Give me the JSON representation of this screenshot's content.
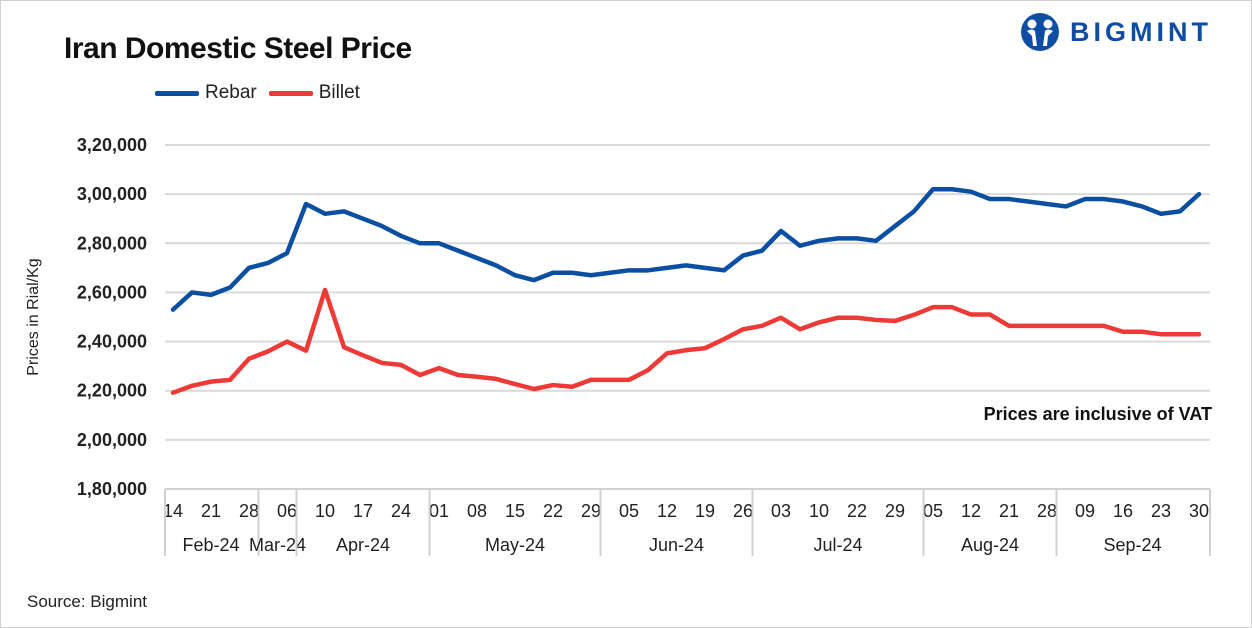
{
  "title": "Iran Domestic Steel Price",
  "source": "Source: Bigmint",
  "logo_text": "BIGMINT",
  "brand_color": "#0e4da4",
  "chart_data": {
    "type": "line",
    "title": "Iran Domestic Steel Price",
    "ylabel": "Prices in Rial/Kg",
    "ylim": [
      180000,
      320000
    ],
    "yticks": [
      180000,
      200000,
      220000,
      240000,
      260000,
      280000,
      300000,
      320000
    ],
    "ytick_labels": [
      "1,80,000",
      "2,00,000",
      "2,20,000",
      "2,40,000",
      "2,60,000",
      "2,80,000",
      "3,00,000",
      "3,20,000"
    ],
    "grid": true,
    "legend": "top-left",
    "annotation": "Prices are inclusive of VAT",
    "x_labels": [
      "14",
      "",
      "21",
      "",
      "28",
      "",
      "06",
      "",
      "10",
      "",
      "17",
      "",
      "24",
      "",
      "01",
      "",
      "08",
      "",
      "15",
      "",
      "22",
      "",
      "29",
      "",
      "05",
      "",
      "12",
      "",
      "19",
      "",
      "26",
      "",
      "03",
      "",
      "10",
      "",
      "22",
      "",
      "29",
      "",
      "05",
      "",
      "12",
      "",
      "21",
      "",
      "28",
      "",
      "09",
      "",
      "16",
      "",
      "23",
      "",
      "30"
    ],
    "month_groups": [
      {
        "label": "Feb-24",
        "count": 5
      },
      {
        "label": "Mar-24",
        "count": 2
      },
      {
        "label": "Apr-24",
        "count": 7
      },
      {
        "label": "May-24",
        "count": 9
      },
      {
        "label": "Jun-24",
        "count": 8
      },
      {
        "label": "Jul-24",
        "count": 9
      },
      {
        "label": "Aug-24",
        "count": 7
      },
      {
        "label": "Sep-24",
        "count": 8
      }
    ],
    "series": [
      {
        "name": "Rebar",
        "color": "#0b4fa3",
        "values": [
          253000,
          260000,
          259000,
          262000,
          270000,
          272000,
          276000,
          296000,
          292000,
          293000,
          290000,
          287000,
          283000,
          280000,
          280000,
          277000,
          274000,
          271000,
          267000,
          265000,
          268000,
          268000,
          267000,
          268000,
          269000,
          269000,
          270000,
          271000,
          270000,
          269000,
          275000,
          277000,
          285000,
          279000,
          281000,
          282000,
          282000,
          281000,
          287000,
          293000,
          302000,
          302000,
          301000,
          298000,
          298000,
          297000,
          296000,
          295000,
          298000,
          298000,
          297000,
          295000,
          292000,
          293000,
          300000
        ]
      },
      {
        "name": "Billet",
        "color": "#ee3a36",
        "values": [
          219200,
          222000,
          223700,
          224400,
          233000,
          236000,
          240000,
          236300,
          261000,
          237700,
          234400,
          231300,
          230500,
          226400,
          229200,
          226400,
          225700,
          224800,
          222700,
          220700,
          222300,
          221600,
          224400,
          224400,
          224400,
          228400,
          235200,
          236500,
          237300,
          241000,
          245000,
          246400,
          249700,
          245000,
          247800,
          249700,
          249700,
          248800,
          248400,
          250900,
          254000,
          254000,
          251000,
          251000,
          246400,
          246400,
          246400,
          246400,
          246400,
          246400,
          244000,
          244000,
          243000,
          243000,
          243000
        ]
      }
    ]
  }
}
